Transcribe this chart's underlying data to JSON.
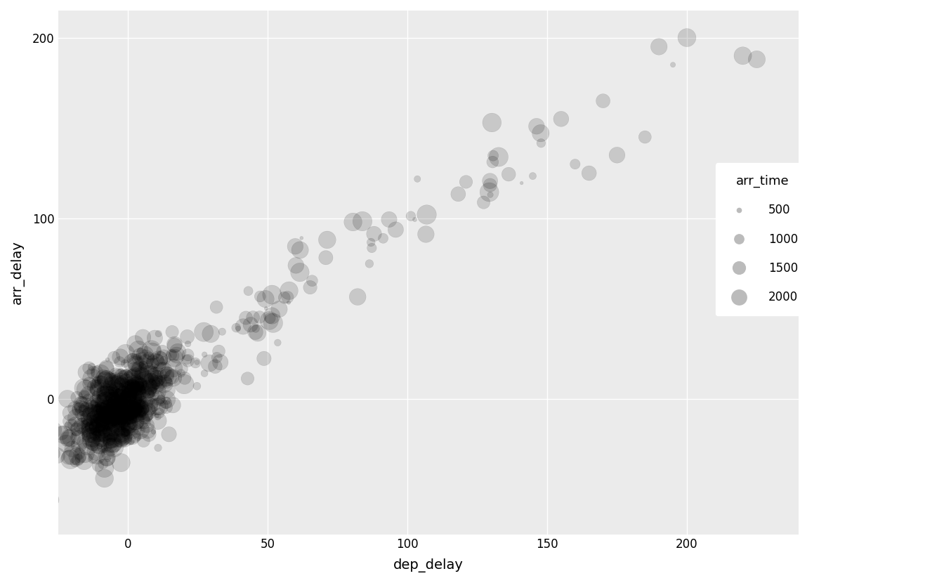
{
  "title": "",
  "xlabel": "dep_delay",
  "ylabel": "arr_delay",
  "legend_title": "arr_time",
  "legend_values": [
    500,
    1000,
    1500,
    2000
  ],
  "xlim": [
    -25,
    240
  ],
  "ylim": [
    -75,
    215
  ],
  "xticks": [
    0,
    50,
    100,
    150,
    200
  ],
  "yticks": [
    0,
    100,
    200
  ],
  "bg_color": "#EBEBEB",
  "grid_color": "#FFFFFF",
  "point_color": "#000000",
  "point_alpha": 0.15,
  "seed": 42
}
